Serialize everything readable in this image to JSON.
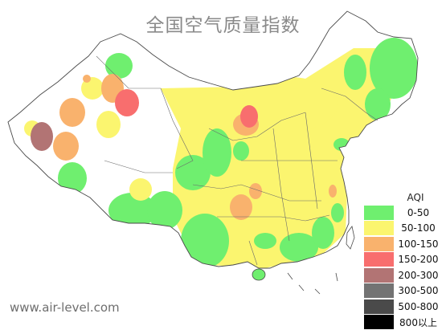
{
  "title": "全国空气质量指数",
  "watermark": "www.air-level.com",
  "legend": {
    "title": "AQI",
    "items": [
      {
        "label": "0-50",
        "color": "#6fef6f"
      },
      {
        "label": "50-100",
        "color": "#fbf56f"
      },
      {
        "label": "100-150",
        "color": "#f9b26d"
      },
      {
        "label": "150-200",
        "color": "#f86e6e"
      },
      {
        "label": "200-300",
        "color": "#b27474"
      },
      {
        "label": "300-500",
        "color": "#737373"
      },
      {
        "label": "500-800",
        "color": "#4a4a4a"
      },
      {
        "label": "800以上",
        "color": "#000000"
      }
    ]
  }
}
